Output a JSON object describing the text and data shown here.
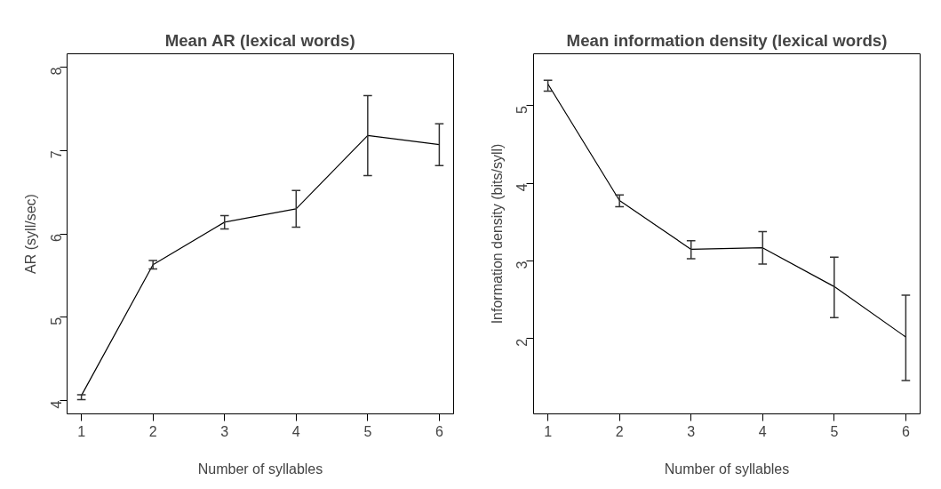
{
  "chart_data": [
    {
      "type": "line",
      "title": "Mean AR (lexical words)",
      "xlabel": "Number of syllables",
      "ylabel": "AR (syll/sec)",
      "x": [
        1,
        2,
        3,
        4,
        5,
        6
      ],
      "color": "#000000",
      "values": [
        4.06,
        5.63,
        6.14,
        6.3,
        7.18,
        7.07
      ],
      "errors": [
        [
          4.01,
          4.07
        ],
        [
          5.58,
          5.68
        ],
        [
          6.06,
          6.22
        ],
        [
          6.08,
          6.52
        ],
        [
          6.7,
          7.66
        ],
        [
          6.82,
          7.32
        ]
      ],
      "xlim": [
        0.8,
        6.2
      ],
      "ylim": [
        3.84,
        8.16
      ],
      "xticks": [
        1,
        2,
        3,
        4,
        5,
        6
      ],
      "yticks": [
        4,
        5,
        6,
        7,
        8
      ],
      "grid": false,
      "marker": "none",
      "line_style": "solid"
    },
    {
      "type": "line",
      "title": "Mean information density (lexical words)",
      "xlabel": "Number of syllables",
      "ylabel": "Information density (bits/syll)",
      "x": [
        1,
        2,
        3,
        4,
        5,
        6
      ],
      "color": "#000000",
      "values": [
        5.28,
        3.78,
        3.15,
        3.17,
        2.67,
        2.02
      ],
      "errors": [
        [
          5.19,
          5.33
        ],
        [
          3.7,
          3.85
        ],
        [
          3.03,
          3.26
        ],
        [
          2.96,
          3.38
        ],
        [
          2.27,
          3.05
        ],
        [
          1.46,
          2.56
        ]
      ],
      "xlim": [
        0.8,
        6.2
      ],
      "ylim": [
        1.03,
        5.67
      ],
      "xticks": [
        1,
        2,
        3,
        4,
        5,
        6
      ],
      "yticks": [
        2,
        3,
        4,
        5
      ],
      "grid": false,
      "marker": "none",
      "line_style": "solid"
    }
  ]
}
